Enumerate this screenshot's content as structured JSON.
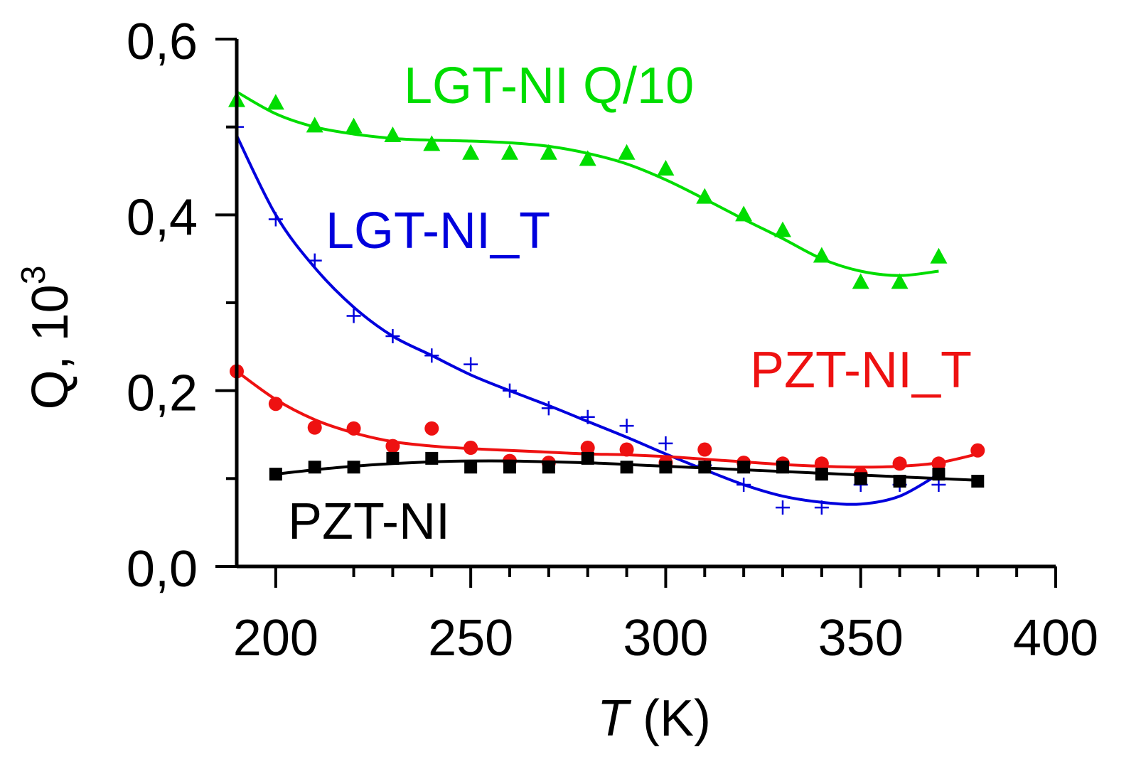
{
  "chart_data": {
    "type": "scatter",
    "title": "",
    "xlabel_italic": "T",
    "xlabel_rest": " (K)",
    "ylabel": "Q, 10",
    "ylabel_sup": "3",
    "xlim": [
      190,
      400
    ],
    "ylim": [
      0,
      0.6
    ],
    "grid": false,
    "x_ticks": [
      200,
      250,
      300,
      350,
      400
    ],
    "x_tick_labels": [
      "200",
      "250",
      "300",
      "350",
      "400"
    ],
    "x_minor_ticks": [
      220,
      230,
      240,
      260,
      270,
      280,
      290,
      310,
      320,
      330,
      340,
      360,
      370,
      380,
      390
    ],
    "y_ticks": [
      0.0,
      0.2,
      0.4,
      0.6
    ],
    "y_tick_labels": [
      "0,0",
      "0,2",
      "0,4",
      "0,6"
    ],
    "y_minor_ticks": [
      0.1,
      0.3,
      0.5
    ],
    "series": [
      {
        "name": "LGT-NI Q/10",
        "label": "LGT-NI Q/10",
        "color": "#00dd00",
        "marker": "triangle",
        "x": [
          190,
          200,
          210,
          220,
          230,
          240,
          250,
          260,
          270,
          280,
          290,
          300,
          310,
          320,
          330,
          340,
          350,
          360,
          370
        ],
        "y": [
          0.53,
          0.527,
          0.501,
          0.5,
          0.49,
          0.48,
          0.47,
          0.47,
          0.47,
          0.463,
          0.47,
          0.452,
          0.42,
          0.4,
          0.382,
          0.353,
          0.323,
          0.323,
          0.352
        ],
        "fit_x": [
          190,
          200,
          210,
          220,
          230,
          240,
          250,
          260,
          270,
          280,
          290,
          300,
          310,
          320,
          330,
          340,
          350,
          360,
          370
        ],
        "fit_y": [
          0.54,
          0.515,
          0.5,
          0.492,
          0.487,
          0.485,
          0.484,
          0.482,
          0.478,
          0.47,
          0.458,
          0.44,
          0.418,
          0.395,
          0.373,
          0.35,
          0.336,
          0.331,
          0.336
        ]
      },
      {
        "name": "LGT-NI_T",
        "label": "LGT-NI_T",
        "color": "#0000dd",
        "marker": "plus",
        "x": [
          190,
          200,
          210,
          220,
          230,
          240,
          250,
          260,
          270,
          280,
          290,
          300,
          310,
          320,
          330,
          340,
          350,
          360,
          370
        ],
        "y": [
          0.5,
          0.395,
          0.348,
          0.285,
          0.262,
          0.24,
          0.23,
          0.2,
          0.18,
          0.17,
          0.16,
          0.14,
          0.115,
          0.093,
          0.067,
          0.067,
          0.093,
          0.093,
          0.093
        ],
        "fit_x": [
          190,
          200,
          210,
          220,
          230,
          240,
          250,
          260,
          270,
          280,
          290,
          300,
          310,
          320,
          330,
          340,
          350,
          360,
          370
        ],
        "fit_y": [
          0.49,
          0.4,
          0.34,
          0.295,
          0.262,
          0.24,
          0.218,
          0.2,
          0.183,
          0.165,
          0.147,
          0.128,
          0.11,
          0.093,
          0.08,
          0.073,
          0.071,
          0.08,
          0.105
        ]
      },
      {
        "name": "PZT-NI_T",
        "label": "PZT-NI_T",
        "color": "#ee1111",
        "marker": "circle",
        "x": [
          190,
          200,
          210,
          220,
          230,
          240,
          250,
          260,
          270,
          280,
          290,
          300,
          310,
          320,
          330,
          340,
          350,
          360,
          370,
          380
        ],
        "y": [
          0.222,
          0.185,
          0.158,
          0.157,
          0.137,
          0.157,
          0.135,
          0.12,
          0.118,
          0.135,
          0.133,
          0.118,
          0.133,
          0.118,
          0.117,
          0.117,
          0.105,
          0.117,
          0.117,
          0.132
        ],
        "fit_x": [
          190,
          200,
          210,
          220,
          230,
          240,
          250,
          260,
          270,
          280,
          290,
          300,
          310,
          320,
          330,
          340,
          350,
          360,
          370,
          380
        ],
        "fit_y": [
          0.222,
          0.19,
          0.167,
          0.152,
          0.142,
          0.137,
          0.134,
          0.132,
          0.13,
          0.128,
          0.127,
          0.125,
          0.122,
          0.119,
          0.116,
          0.114,
          0.113,
          0.114,
          0.118,
          0.128
        ]
      },
      {
        "name": "PZT-NI",
        "label": "PZT-NI",
        "color": "#000000",
        "marker": "square",
        "x": [
          200,
          210,
          220,
          230,
          240,
          250,
          260,
          270,
          280,
          290,
          300,
          310,
          320,
          330,
          340,
          350,
          360,
          370,
          380
        ],
        "y": [
          0.105,
          0.113,
          0.113,
          0.123,
          0.123,
          0.113,
          0.113,
          0.113,
          0.123,
          0.113,
          0.113,
          0.113,
          0.113,
          0.113,
          0.105,
          0.1,
          0.097,
          0.105,
          0.097
        ],
        "fit_x": [
          200,
          210,
          220,
          230,
          240,
          250,
          260,
          270,
          280,
          290,
          300,
          310,
          320,
          330,
          340,
          350,
          360,
          370,
          380
        ],
        "fit_y": [
          0.105,
          0.11,
          0.114,
          0.117,
          0.119,
          0.12,
          0.12,
          0.119,
          0.118,
          0.116,
          0.114,
          0.112,
          0.11,
          0.108,
          0.106,
          0.104,
          0.102,
          0.1,
          0.098
        ]
      }
    ]
  }
}
